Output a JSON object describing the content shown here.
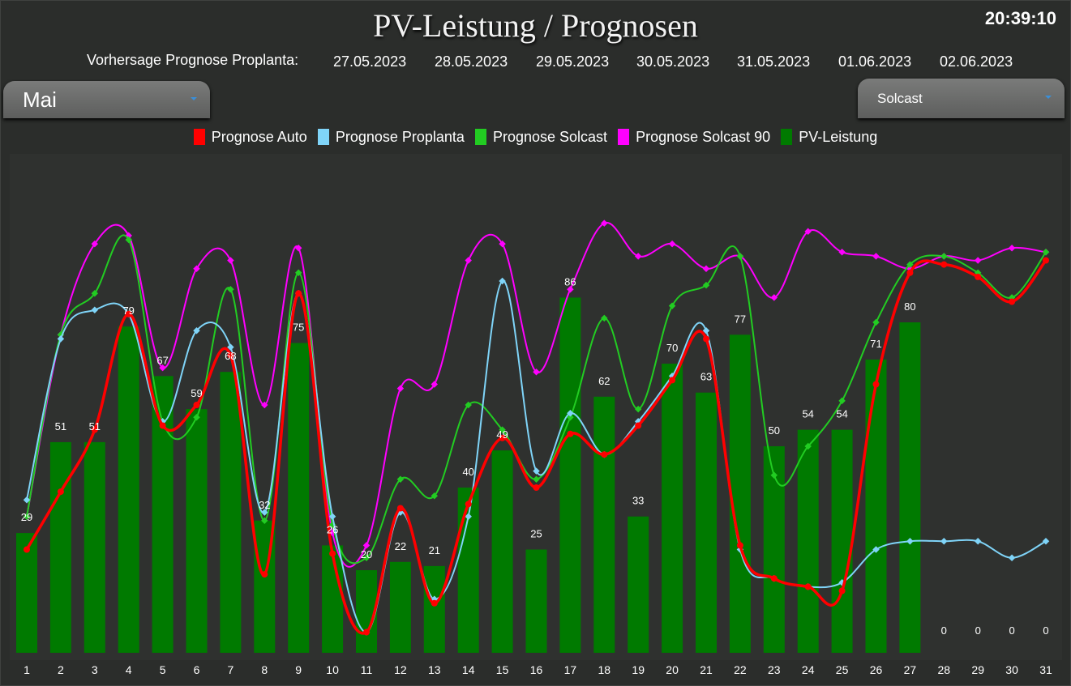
{
  "header": {
    "title": "PV-Leistung / Prognosen",
    "clock": "20:39:10",
    "forecast_label": "Vorhersage Prognose Proplanta:",
    "forecast_dates": [
      "27.05.2023",
      "28.05.2023",
      "29.05.2023",
      "30.05.2023",
      "31.05.2023",
      "01.06.2023",
      "02.06.2023"
    ]
  },
  "controls": {
    "month_selected": "Mai",
    "source_selected": "Solcast"
  },
  "colors": {
    "auto": "#ff0000",
    "proplanta": "#7fd4f8",
    "solcast": "#22cc22",
    "solcast90": "#ff00ff",
    "pv": "#007a00"
  },
  "chart_data": {
    "type": "bar",
    "categories": [
      "1",
      "2",
      "3",
      "4",
      "5",
      "6",
      "7",
      "8",
      "9",
      "10",
      "11",
      "12",
      "13",
      "14",
      "15",
      "16",
      "17",
      "18",
      "19",
      "20",
      "21",
      "22",
      "23",
      "24",
      "25",
      "26",
      "27",
      "28",
      "29",
      "30",
      "31"
    ],
    "ylim": [
      0,
      100
    ],
    "grid": false,
    "legend": "top-center",
    "series": [
      {
        "key": "pv",
        "name": "PV-Leistung",
        "type": "bar",
        "values": [
          29,
          51,
          51,
          79,
          67,
          59,
          68,
          32,
          75,
          26,
          20,
          22,
          21,
          40,
          49,
          25,
          86,
          62,
          33,
          70,
          63,
          77,
          50,
          54,
          54,
          71,
          80,
          0,
          0,
          0,
          0
        ]
      },
      {
        "key": "auto",
        "name": "Prognose Auto",
        "type": "line",
        "values": [
          25,
          39,
          54,
          82,
          55,
          60,
          72,
          19,
          87,
          24,
          5,
          35,
          12,
          36,
          52,
          40,
          53,
          48,
          55,
          66,
          76,
          26,
          18,
          16,
          15,
          65,
          92,
          94,
          91,
          85,
          95
        ]
      },
      {
        "key": "proplanta",
        "name": "Prognose Proplanta",
        "type": "line",
        "values": [
          37,
          76,
          83,
          82,
          56,
          78,
          74,
          34,
          87,
          33,
          5,
          34,
          13,
          33,
          90,
          44,
          58,
          48,
          56,
          67,
          78,
          25,
          18,
          16,
          17,
          25,
          27,
          27,
          27,
          23,
          27
        ]
      },
      {
        "key": "solcast",
        "name": "Prognose Solcast",
        "type": "line",
        "values": null
      },
      {
        "key": "solcast90",
        "name": "Prognose Solcast 90",
        "type": "line",
        "values": [
          33,
          77,
          99,
          101,
          69,
          93,
          95,
          60,
          98,
          29,
          26,
          64,
          65,
          95,
          99,
          68,
          88,
          104,
          96,
          99,
          93,
          96,
          86,
          102,
          97,
          96,
          93,
          96,
          95,
          98,
          97
        ]
      }
    ],
    "solcast_values": [
      33,
      77,
      87,
      100,
      56,
      57,
      88,
      32,
      92,
      31,
      23,
      42,
      38,
      60,
      54,
      42,
      57,
      81,
      59,
      84,
      89,
      96,
      43,
      50,
      61,
      80,
      94,
      96,
      92,
      86,
      97
    ],
    "data_labels": [
      "29",
      "51",
      "51",
      "79",
      "67",
      "59",
      "68",
      "32",
      "75",
      "26",
      "20",
      "22",
      "21",
      "40",
      "49",
      "25",
      "86",
      "62",
      "33",
      "70",
      "63",
      "77",
      "50",
      "54",
      "54",
      "71",
      "80",
      "0",
      "0",
      "0",
      "0"
    ]
  }
}
